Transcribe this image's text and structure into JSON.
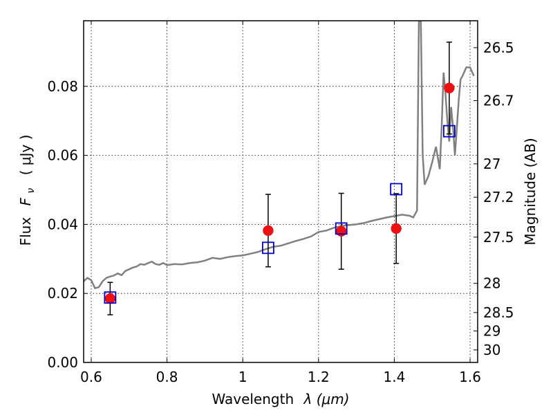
{
  "chart_data": {
    "type": "scatter",
    "xlabel_text": "Wavelength",
    "xlabel_math": "λ (μm)",
    "ylabel_text": "Flux",
    "ylabel_math": "F",
    "ylabel_sub": "ν",
    "ylabel_unit": "( μJy )",
    "y2label": "Magnitude (AB)",
    "xlim": [
      0.58,
      1.62
    ],
    "ylim": [
      0.0,
      0.099
    ],
    "grid": true,
    "x_ticks": [
      {
        "value": 0.6,
        "label": "0.6"
      },
      {
        "value": 0.8,
        "label": "0.8"
      },
      {
        "value": 1.0,
        "label": "1"
      },
      {
        "value": 1.2,
        "label": "1.2"
      },
      {
        "value": 1.4,
        "label": "1.4"
      },
      {
        "value": 1.6,
        "label": "1.6"
      }
    ],
    "y_ticks": [
      {
        "value": 0.0,
        "label": "0.00"
      },
      {
        "value": 0.02,
        "label": "0.02"
      },
      {
        "value": 0.04,
        "label": "0.04"
      },
      {
        "value": 0.06,
        "label": "0.06"
      },
      {
        "value": 0.08,
        "label": "0.08"
      }
    ],
    "y2_ticks": [
      {
        "value": 26.5,
        "label": "26.5"
      },
      {
        "value": 26.7,
        "label": "26.7"
      },
      {
        "value": 27,
        "label": "27"
      },
      {
        "value": 27.2,
        "label": "27.2"
      },
      {
        "value": 27.5,
        "label": "27.5"
      },
      {
        "value": 28,
        "label": "28"
      },
      {
        "value": 28.5,
        "label": "28.5"
      },
      {
        "value": 29,
        "label": "29"
      },
      {
        "value": 30,
        "label": "30"
      }
    ],
    "model_spectrum": {
      "color": "#808080",
      "x": [
        0.58,
        0.59,
        0.6,
        0.61,
        0.62,
        0.63,
        0.64,
        0.65,
        0.66,
        0.67,
        0.68,
        0.69,
        0.7,
        0.71,
        0.72,
        0.73,
        0.74,
        0.75,
        0.76,
        0.77,
        0.78,
        0.79,
        0.8,
        0.82,
        0.84,
        0.86,
        0.88,
        0.9,
        0.92,
        0.94,
        0.96,
        0.98,
        1.0,
        1.02,
        1.04,
        1.06,
        1.08,
        1.1,
        1.12,
        1.14,
        1.16,
        1.18,
        1.2,
        1.22,
        1.24,
        1.26,
        1.28,
        1.3,
        1.32,
        1.34,
        1.36,
        1.38,
        1.4,
        1.42,
        1.44,
        1.45,
        1.46,
        1.465,
        1.47,
        1.475,
        1.48,
        1.49,
        1.5,
        1.51,
        1.52,
        1.525,
        1.53,
        1.535,
        1.54,
        1.545,
        1.55,
        1.555,
        1.56,
        1.565,
        1.57,
        1.575,
        1.58,
        1.59,
        1.6,
        1.61
      ],
      "y": [
        0.0235,
        0.0245,
        0.0238,
        0.0215,
        0.0218,
        0.0235,
        0.0245,
        0.0249,
        0.0252,
        0.0258,
        0.0253,
        0.0265,
        0.027,
        0.0275,
        0.0278,
        0.0285,
        0.0283,
        0.0288,
        0.0292,
        0.0285,
        0.0283,
        0.0288,
        0.0282,
        0.0285,
        0.0284,
        0.0288,
        0.029,
        0.0295,
        0.0303,
        0.03,
        0.0305,
        0.0308,
        0.031,
        0.0315,
        0.032,
        0.0328,
        0.0335,
        0.0338,
        0.0345,
        0.0352,
        0.0358,
        0.0365,
        0.0378,
        0.0382,
        0.039,
        0.0395,
        0.0398,
        0.04,
        0.0404,
        0.041,
        0.0415,
        0.042,
        0.0424,
        0.0428,
        0.0425,
        0.042,
        0.044,
        0.099,
        0.099,
        0.06,
        0.0515,
        0.054,
        0.058,
        0.0625,
        0.056,
        0.068,
        0.084,
        0.078,
        0.07,
        0.064,
        0.074,
        0.068,
        0.06,
        0.068,
        0.076,
        0.082,
        0.083,
        0.0855,
        0.0855,
        0.083
      ]
    },
    "observed": {
      "color": "#ee1111",
      "x": [
        0.65,
        1.067,
        1.26,
        1.405,
        1.545
      ],
      "y": [
        0.0185,
        0.0382,
        0.038,
        0.0388,
        0.0795
      ],
      "yerr": [
        0.0047,
        0.0105,
        0.011,
        0.0101,
        0.0133
      ]
    },
    "model_photometry": {
      "color": "#0000cc",
      "x": [
        0.65,
        1.067,
        1.26,
        1.405,
        1.545
      ],
      "y": [
        0.0188,
        0.0332,
        0.0388,
        0.0502,
        0.067
      ]
    }
  }
}
